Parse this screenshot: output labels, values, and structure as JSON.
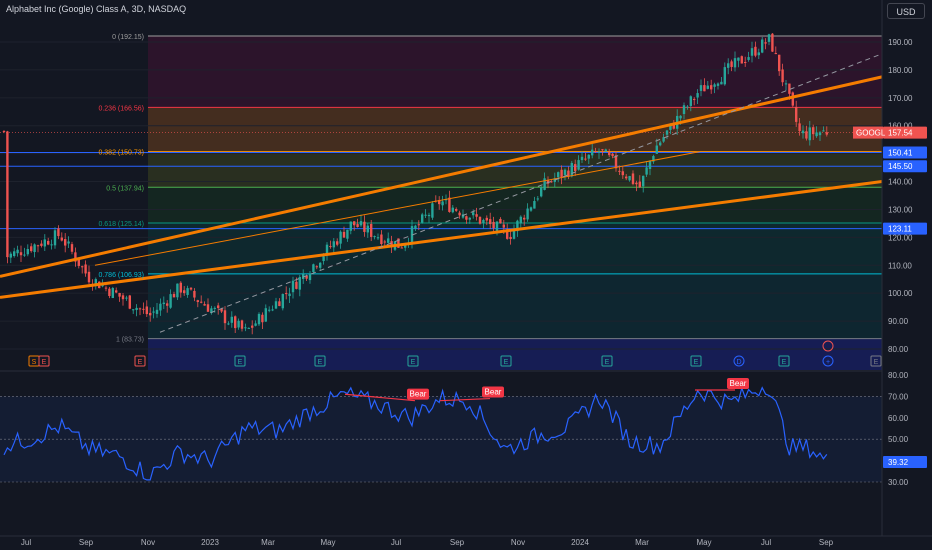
{
  "header": {
    "title": "Alphabet Inc (Google) Class A, 3D, NASDAQ",
    "currency": "USD"
  },
  "chart_data": {
    "type": "candlestick",
    "symbol": "GOOGL",
    "last_price": 157.54,
    "price_axis": {
      "ticks": [
        80,
        90,
        100,
        110,
        120,
        130,
        140,
        150,
        160,
        170,
        180,
        190
      ]
    },
    "hidden_price_labels": [
      "150.41",
      "145.50",
      "123.11"
    ],
    "x_axis": {
      "ticks": [
        "Jul",
        "Sep",
        "Nov",
        "2023",
        "Mar",
        "May",
        "Jul",
        "Sep",
        "Nov",
        "2024",
        "Mar",
        "May",
        "Jul",
        "Sep"
      ]
    },
    "fibonacci": [
      {
        "ratio": "0",
        "price": 192.15,
        "label": "0 (192.15)"
      },
      {
        "ratio": "0.236",
        "price": 166.56,
        "label": "0.236 (166.56)"
      },
      {
        "ratio": "0.382",
        "price": 150.73,
        "label": "0.382 (150.73)"
      },
      {
        "ratio": "0.5",
        "price": 137.94,
        "label": "0.5 (137.94)"
      },
      {
        "ratio": "0.618",
        "price": 125.14,
        "label": "0.618 (125.14)"
      },
      {
        "ratio": "0.786",
        "price": 106.93,
        "label": "0.786 (106.93)"
      },
      {
        "ratio": "1",
        "price": 83.73,
        "label": "1 (83.73)"
      }
    ],
    "events": [
      "S",
      "E",
      "E",
      "E",
      "E",
      "E",
      "E",
      "E",
      "E",
      "D",
      "E",
      "+",
      "E"
    ],
    "rsi": {
      "ticks": [
        30,
        40,
        50,
        60,
        70,
        80
      ],
      "last": 39.32,
      "last_label": "39.32",
      "divergence_labels": [
        "Bear",
        "Bear",
        "Bear"
      ]
    },
    "colors": {
      "up": "#26a69a",
      "down": "#ef5350",
      "orange": "#f57c00",
      "rsi": "#2962ff",
      "bg": "#131722"
    }
  }
}
